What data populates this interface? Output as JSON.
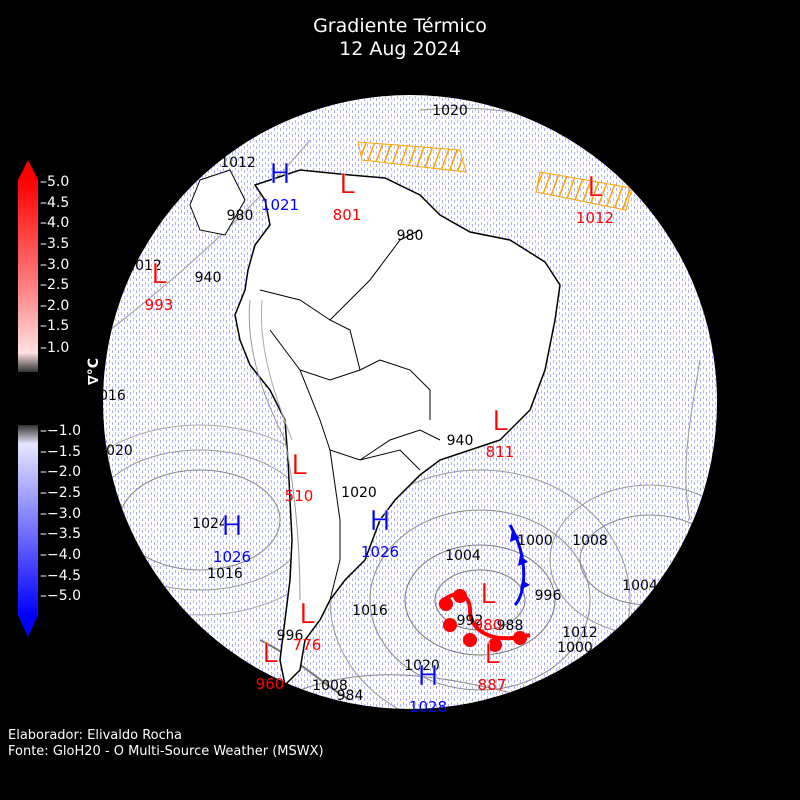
{
  "title": {
    "line1": "Gradiente Térmico",
    "line2": "12 Aug 2024"
  },
  "credits": {
    "author": "Elaborador: Elivaldo Rocha",
    "source": "Fonte: GloH20 - O Multi-Source Weather (MSWX)"
  },
  "colorbar": {
    "label": "∇°C",
    "positive_ticks": [
      "5.0",
      "4.5",
      "4.0",
      "3.5",
      "3.0",
      "2.5",
      "2.0",
      "1.5",
      "1.0"
    ],
    "negative_ticks": [
      "−1.0",
      "−1.5",
      "−2.0",
      "−2.5",
      "−3.0",
      "−3.5",
      "−4.0",
      "−4.5",
      "−5.0"
    ],
    "colors": {
      "max": "#ff0000",
      "min": "#0000ff",
      "neutral": "#ffffff"
    }
  },
  "pressure_centers": [
    {
      "type": "H",
      "value": "1021",
      "color": "#0000ff"
    },
    {
      "type": "L",
      "value": "801",
      "color": "#ff0000"
    },
    {
      "type": "L",
      "value": "1012",
      "color": "#ff0000"
    },
    {
      "type": "L",
      "value": "993",
      "color": "#ff0000"
    },
    {
      "type": "L",
      "value": "811",
      "color": "#ff0000"
    },
    {
      "type": "L",
      "value": "510",
      "color": "#ff0000"
    },
    {
      "type": "H",
      "value": "1026",
      "color": "#0000ff"
    },
    {
      "type": "H",
      "value": "1026",
      "color": "#0000ff"
    },
    {
      "type": "L",
      "value": "980",
      "color": "#ff0000"
    },
    {
      "type": "L",
      "value": "887",
      "color": "#ff0000"
    },
    {
      "type": "L",
      "value": "776",
      "color": "#ff0000"
    },
    {
      "type": "L",
      "value": "960",
      "color": "#ff0000"
    },
    {
      "type": "H",
      "value": "1028",
      "color": "#0000ff"
    }
  ],
  "isobar_labels": [
    "1020",
    "1012",
    "980",
    "940",
    "980",
    "1012",
    "1016",
    "1020",
    "940",
    "1020",
    "1024",
    "1016",
    "1000",
    "1004",
    "1008",
    "992",
    "988",
    "996",
    "1012",
    "1000",
    "1004",
    "1020",
    "984",
    "1008",
    "1016",
    "996"
  ]
}
